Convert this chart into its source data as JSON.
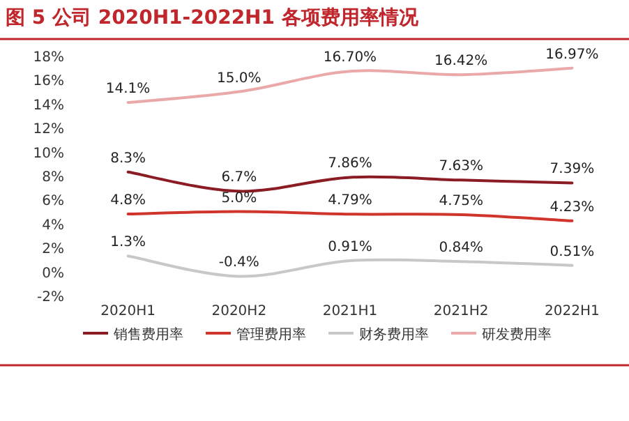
{
  "chart_data": {
    "type": "line",
    "title": "图 5 公司 2020H1-2022H1 各项费用率情况",
    "categories": [
      "2020H1",
      "2020H2",
      "2021H1",
      "2021H2",
      "2022H1"
    ],
    "series": [
      {
        "name": "销售费用率",
        "color": "#8b1c24",
        "values": [
          8.3,
          6.7,
          7.86,
          7.63,
          7.39
        ],
        "value_labels": [
          "8.3%",
          "6.7%",
          "7.86%",
          "7.63%",
          "7.39%"
        ]
      },
      {
        "name": "管理费用率",
        "color": "#d0352b",
        "values": [
          4.8,
          5.0,
          4.79,
          4.75,
          4.23
        ],
        "value_labels": [
          "4.8%",
          "5.0%",
          "4.79%",
          "4.75%",
          "4.23%"
        ]
      },
      {
        "name": "财务费用率",
        "color": "#c8c8c8",
        "values": [
          1.3,
          -0.4,
          0.91,
          0.84,
          0.51
        ],
        "value_labels": [
          "1.3%",
          "-0.4%",
          "0.91%",
          "0.84%",
          "0.51%"
        ]
      },
      {
        "name": "研发费用率",
        "color": "#eaa8a8",
        "values": [
          14.1,
          15.0,
          16.7,
          16.42,
          16.97
        ],
        "value_labels": [
          "14.1%",
          "15.0%",
          "16.70%",
          "16.42%",
          "16.97%"
        ]
      }
    ],
    "ylim": [
      -2,
      18
    ],
    "yticks": [
      {
        "value": -2,
        "label": "-2%"
      },
      {
        "value": 0,
        "label": "0%"
      },
      {
        "value": 2,
        "label": "2%"
      },
      {
        "value": 4,
        "label": "4%"
      },
      {
        "value": 6,
        "label": "6%"
      },
      {
        "value": 8,
        "label": "8%"
      },
      {
        "value": 10,
        "label": "10%"
      },
      {
        "value": 12,
        "label": "12%"
      },
      {
        "value": 14,
        "label": "14%"
      },
      {
        "value": 16,
        "label": "16%"
      },
      {
        "value": 18,
        "label": "18%"
      }
    ],
    "legend": "bottom"
  }
}
